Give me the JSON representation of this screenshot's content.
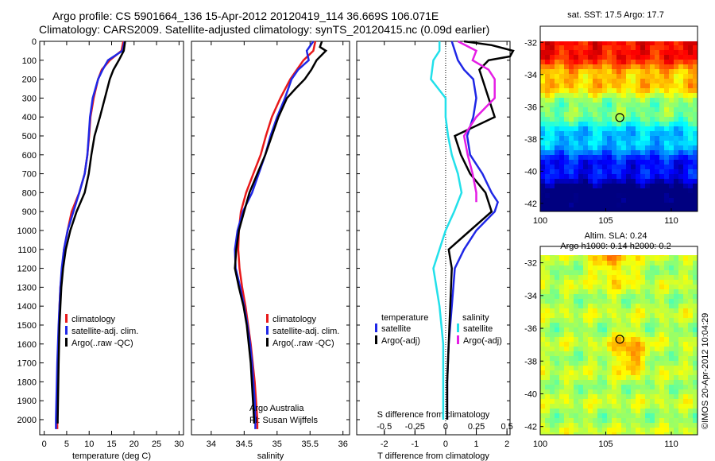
{
  "header": {
    "title_line1": "Argo profile: CS 5901664_136 15-Apr-2012 20120419_114 36.669S 106.071E",
    "title_line2": "Climatology: CARS2009. Satellite-adjusted climatology: synTS_20120415.nc (0.09d earlier)"
  },
  "colors": {
    "climatology": "#e8191a",
    "satellite": "#1f27e6",
    "argo": "#000000",
    "sat_salinity": "#22e0ea",
    "argo_salinity": "#e51ee5"
  },
  "chart_data": [
    {
      "type": "line",
      "xlabel": "temperature (deg C)",
      "ylabel": "",
      "xlim": [
        -1,
        31
      ],
      "ylim": [
        2080,
        0
      ],
      "xticks": [
        "0",
        "5",
        "10",
        "15",
        "20",
        "25",
        "30"
      ],
      "yticks": [
        "0",
        "100",
        "200",
        "300",
        "400",
        "500",
        "600",
        "700",
        "800",
        "900",
        "1000",
        "1100",
        "1200",
        "1300",
        "1400",
        "1500",
        "1600",
        "1700",
        "1800",
        "1900",
        "2000"
      ],
      "legend": {
        "position": "lower-middle",
        "entries": [
          "climatology",
          "satellite-adj. clim.",
          "Argo(..raw -QC)"
        ]
      },
      "series": [
        {
          "name": "climatology",
          "depth": [
            0,
            50,
            100,
            150,
            200,
            300,
            400,
            500,
            600,
            700,
            800,
            900,
            1000,
            1100,
            1200,
            1300,
            1400,
            1500,
            1700,
            2000,
            2050
          ],
          "values": [
            17.6,
            17.2,
            14.6,
            12.8,
            12.0,
            11.0,
            10.3,
            10.0,
            9.6,
            9.0,
            7.8,
            6.1,
            5.2,
            4.4,
            4.0,
            3.6,
            3.4,
            3.3,
            3.1,
            2.9,
            2.9
          ]
        },
        {
          "name": "satellite-adj. clim.",
          "depth": [
            0,
            50,
            100,
            150,
            200,
            300,
            400,
            500,
            600,
            700,
            800,
            900,
            1000,
            1100,
            1200,
            1300,
            1400,
            1500,
            1700,
            2000,
            2050
          ],
          "values": [
            17.9,
            17.4,
            14.2,
            13.0,
            12.0,
            10.8,
            10.2,
            9.9,
            9.6,
            9.0,
            7.8,
            6.5,
            5.2,
            4.4,
            3.9,
            3.6,
            3.4,
            3.2,
            2.9,
            2.6,
            2.6
          ]
        },
        {
          "name": "Argo(..raw -QC)",
          "depth": [
            0,
            50,
            100,
            150,
            200,
            300,
            400,
            500,
            600,
            700,
            800,
            900,
            1000,
            1100,
            1200,
            1300,
            1400,
            1500,
            1700,
            2000,
            2020
          ],
          "values": [
            18.0,
            17.7,
            16.6,
            15.4,
            14.6,
            13.5,
            12.4,
            11.2,
            10.5,
            9.9,
            9.0,
            7.2,
            5.8,
            4.8,
            4.2,
            3.8,
            3.6,
            3.4,
            3.2,
            3.0,
            3.0
          ]
        }
      ]
    },
    {
      "type": "line",
      "xlabel": "salinity",
      "xlim": [
        33.7,
        36.1
      ],
      "ylim": [
        2080,
        0
      ],
      "xticks": [
        "34",
        "34.5",
        "35",
        "35.5",
        "36"
      ],
      "legend": {
        "position": "lower-right",
        "entries": [
          "climatology",
          "satellite-adj. clim.",
          "Argo(..raw -QC)"
        ]
      },
      "annotation": [
        "Argo Australia",
        "PI: Susan Wijffels"
      ],
      "series": [
        {
          "name": "climatology",
          "depth": [
            0,
            50,
            100,
            150,
            200,
            300,
            400,
            500,
            600,
            700,
            800,
            900,
            1000,
            1100,
            1200,
            1300,
            1400,
            1500,
            1600,
            1700,
            1800,
            1900,
            2000,
            2050
          ],
          "values": [
            35.58,
            35.55,
            35.4,
            35.3,
            35.2,
            35.05,
            34.92,
            34.83,
            34.75,
            34.64,
            34.53,
            34.45,
            34.42,
            34.41,
            34.43,
            34.47,
            34.52,
            34.56,
            34.6,
            34.63,
            34.66,
            34.68,
            34.7,
            34.7
          ]
        },
        {
          "name": "satellite-adj. clim.",
          "depth": [
            0,
            50,
            100,
            150,
            200,
            300,
            400,
            500,
            600,
            700,
            800,
            900,
            1000,
            1100,
            1200,
            1300,
            1400,
            1500,
            1600,
            1700,
            1800,
            1900,
            2000,
            2050
          ],
          "values": [
            35.55,
            35.45,
            35.48,
            35.32,
            35.22,
            35.12,
            35.0,
            34.9,
            34.82,
            34.72,
            34.62,
            34.48,
            34.4,
            34.36,
            34.37,
            34.44,
            34.5,
            34.55,
            34.59,
            34.62,
            34.64,
            34.66,
            34.67,
            34.67
          ]
        },
        {
          "name": "Argo(..raw -QC)",
          "depth": [
            0,
            30,
            50,
            100,
            150,
            200,
            250,
            300,
            400,
            500,
            600,
            700,
            800,
            900,
            1000,
            1100,
            1200,
            1300,
            1400,
            1500,
            1700,
            2000,
            2020
          ],
          "values": [
            35.68,
            35.65,
            35.74,
            35.6,
            35.52,
            35.42,
            35.28,
            35.15,
            35.02,
            34.92,
            34.82,
            34.7,
            34.58,
            34.5,
            34.42,
            34.38,
            34.36,
            34.42,
            34.49,
            34.54,
            34.6,
            34.65,
            34.65
          ]
        }
      ]
    },
    {
      "type": "line",
      "xlabel": "T difference from climatology",
      "xlabel_top": "S difference from climatology",
      "xlim": [
        -2.9,
        2.1
      ],
      "ylim": [
        2080,
        0
      ],
      "xticks": [
        "-2",
        "-1",
        "0",
        "1",
        "2"
      ],
      "xticks_top": [
        "-0.5",
        "-0.25",
        "0",
        "0.25",
        "0.5"
      ],
      "legend": {
        "position": "lower-middle",
        "groups": [
          {
            "title": "temperature",
            "entries": [
              "satellite",
              "Argo(-adj)"
            ]
          },
          {
            "title": "salinity",
            "entries": [
              "satellite",
              "Argo(-adj)"
            ]
          }
        ]
      },
      "series": [
        {
          "name": "temperature satellite",
          "depth": [
            0,
            50,
            100,
            150,
            200,
            300,
            400,
            500,
            600,
            700,
            800,
            850,
            900,
            1000,
            1100,
            1200,
            1400,
            1600,
            1800,
            2000
          ],
          "values": [
            0.2,
            0.3,
            0.4,
            0.6,
            0.9,
            1.0,
            0.9,
            0.7,
            0.8,
            1.2,
            1.5,
            1.7,
            1.6,
            1.0,
            0.6,
            0.3,
            0.2,
            0.1,
            0.05,
            0.05
          ]
        },
        {
          "name": "temperature Argo(-adj)",
          "depth": [
            0,
            20,
            50,
            80,
            100,
            150,
            200,
            300,
            400,
            500,
            600,
            700,
            800,
            900,
            1000,
            1100,
            1200,
            1400,
            1600,
            1800,
            2000
          ],
          "values": [
            0.6,
            1.5,
            2.2,
            2.1,
            1.4,
            1.1,
            1.2,
            1.4,
            1.6,
            0.3,
            0.5,
            0.8,
            1.3,
            1.5,
            0.8,
            0.1,
            0.2,
            0.15,
            0.1,
            0.05,
            0.05
          ]
        },
        {
          "name": "salinity satellite",
          "depth": [
            0,
            50,
            100,
            200,
            300,
            400,
            500,
            600,
            700,
            800,
            900,
            1000,
            1100,
            1200,
            1400,
            1600,
            1800,
            2000
          ],
          "values": [
            -0.05,
            -0.05,
            -0.1,
            -0.12,
            0.0,
            0.0,
            0.02,
            0.05,
            0.1,
            0.13,
            0.07,
            0.0,
            -0.05,
            -0.1,
            -0.05,
            -0.02,
            -0.02,
            -0.02
          ]
        },
        {
          "name": "salinity Argo(-adj)",
          "depth": [
            0,
            50,
            100,
            150,
            200,
            300,
            400,
            500,
            600,
            700,
            800,
            850
          ],
          "values": [
            0.1,
            0.25,
            0.22,
            0.35,
            0.4,
            0.4,
            0.25,
            0.15,
            0.18,
            0.22,
            0.25,
            0.25
          ]
        }
      ]
    },
    {
      "type": "heatmap",
      "title": "sat. SST: 17.5 Argo: 17.7",
      "xlim": [
        100,
        112
      ],
      "ylim": [
        -42.5,
        -31
      ],
      "xticks": [
        "100",
        "105",
        "110"
      ],
      "yticks": [
        "-32",
        "-34",
        "-36",
        "-38",
        "-40",
        "-42"
      ],
      "marker": {
        "lon": 106.07,
        "lat": -36.67
      }
    },
    {
      "type": "heatmap",
      "title": "Altim. SLA: 0.24",
      "subtitle": "Argo h1000: 0.14 h2000: 0.2",
      "xlim": [
        100,
        112
      ],
      "ylim": [
        -42.5,
        -31
      ],
      "xticks": [
        "100",
        "105",
        "110"
      ],
      "yticks": [
        "-32",
        "-34",
        "-36",
        "-38",
        "-40",
        "-42"
      ],
      "marker": {
        "lon": 106.07,
        "lat": -36.67
      }
    }
  ],
  "side_label": "©IMOS 20-Apr-2012 10:04:29"
}
